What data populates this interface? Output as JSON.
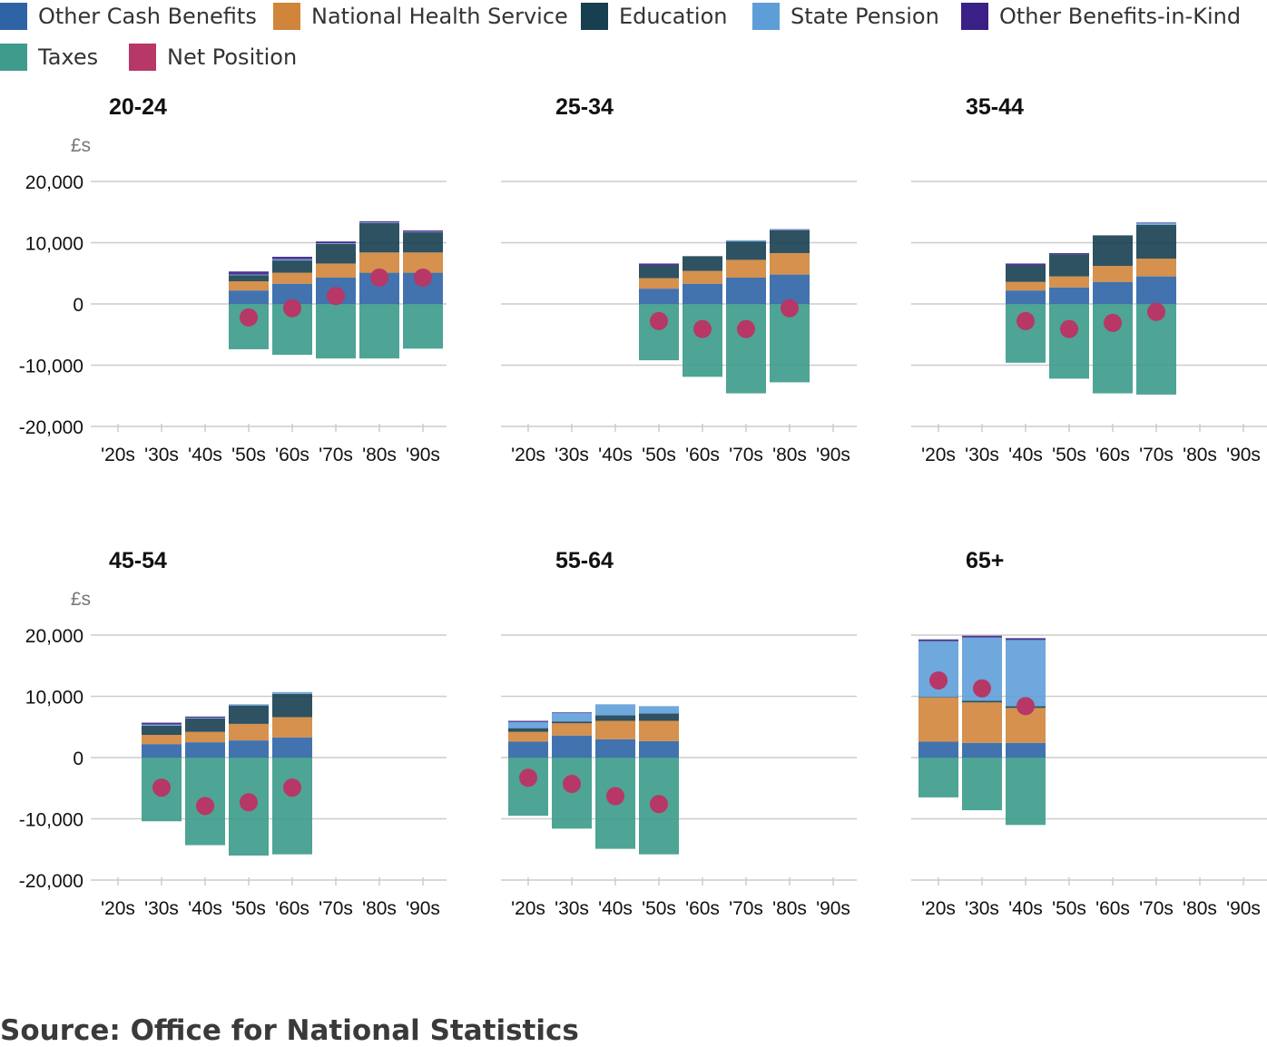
{
  "legend": {
    "items": [
      {
        "label": "Other Cash Benefits",
        "color": "#2e64a6"
      },
      {
        "label": "National Health Service",
        "color": "#d0853a"
      },
      {
        "label": "Education",
        "color": "#173f50"
      },
      {
        "label": "State Pension",
        "color": "#5e9ed8"
      },
      {
        "label": "Other Benefits-in-Kind",
        "color": "#3a1f86"
      },
      {
        "label": "Taxes",
        "color": "#3f9c8c"
      },
      {
        "label": "Net Position",
        "color": "#b73766"
      }
    ]
  },
  "source": "Source: Office for National Statistics",
  "chart_data": [
    {
      "type": "bar",
      "title": "20-24",
      "ylabel": "£s",
      "ylim": [
        -20000,
        20000
      ],
      "yticks": [
        20000,
        10000,
        0,
        -10000,
        -20000
      ],
      "ytick_labels": [
        "20,000",
        "10,000",
        "0",
        "-10,000",
        "-20,000"
      ],
      "categories": [
        "'20s",
        "'30s",
        "'40s",
        "'50s",
        "'60s",
        "'70s",
        "'80s",
        "'90s"
      ],
      "series": [
        {
          "name": "Other Cash Benefits",
          "values": [
            null,
            null,
            null,
            2200,
            3300,
            4300,
            5100,
            5100
          ]
        },
        {
          "name": "National Health Service",
          "values": [
            null,
            null,
            null,
            1500,
            1800,
            2300,
            3300,
            3300
          ]
        },
        {
          "name": "Education",
          "values": [
            null,
            null,
            null,
            1000,
            2000,
            3200,
            4800,
            3300
          ]
        },
        {
          "name": "State Pension",
          "values": [
            null,
            null,
            null,
            100,
            200,
            100,
            100,
            100
          ]
        },
        {
          "name": "Other Benefits-in-Kind",
          "values": [
            null,
            null,
            null,
            500,
            400,
            300,
            200,
            200
          ]
        },
        {
          "name": "Taxes",
          "values": [
            null,
            null,
            null,
            -7400,
            -8300,
            -8900,
            -8900,
            -7300
          ]
        },
        {
          "name": "Net Position",
          "values": [
            null,
            null,
            null,
            -2200,
            -700,
            1300,
            4300,
            4300
          ]
        }
      ]
    },
    {
      "type": "bar",
      "title": "25-34",
      "ylim": [
        -20000,
        20000
      ],
      "categories": [
        "'20s",
        "'30s",
        "'40s",
        "'50s",
        "'60s",
        "'70s",
        "'80s",
        "'90s"
      ],
      "series": [
        {
          "name": "Other Cash Benefits",
          "values": [
            null,
            null,
            null,
            2500,
            3300,
            4300,
            4800,
            null
          ]
        },
        {
          "name": "National Health Service",
          "values": [
            null,
            null,
            null,
            1700,
            2100,
            2900,
            3500,
            null
          ]
        },
        {
          "name": "Education",
          "values": [
            null,
            null,
            null,
            2100,
            2400,
            3000,
            3700,
            null
          ]
        },
        {
          "name": "State Pension",
          "values": [
            null,
            null,
            null,
            0,
            0,
            200,
            100,
            null
          ]
        },
        {
          "name": "Other Benefits-in-Kind",
          "values": [
            null,
            null,
            null,
            300,
            0,
            0,
            100,
            null
          ]
        },
        {
          "name": "Taxes",
          "values": [
            null,
            null,
            null,
            -9200,
            -11900,
            -14600,
            -12800,
            null
          ]
        },
        {
          "name": "Net Position",
          "values": [
            null,
            null,
            null,
            -2800,
            -4100,
            -4100,
            -700,
            null
          ]
        }
      ]
    },
    {
      "type": "bar",
      "title": "35-44",
      "ylim": [
        -20000,
        20000
      ],
      "categories": [
        "'20s",
        "'30s",
        "'40s",
        "'50s",
        "'60s",
        "'70s",
        "'80s",
        "'90s"
      ],
      "series": [
        {
          "name": "Other Cash Benefits",
          "values": [
            null,
            null,
            2200,
            2700,
            3600,
            4500,
            null,
            null
          ]
        },
        {
          "name": "National Health Service",
          "values": [
            null,
            null,
            1400,
            1800,
            2600,
            2900,
            null,
            null
          ]
        },
        {
          "name": "Education",
          "values": [
            null,
            null,
            2700,
            3600,
            5000,
            5500,
            null,
            null
          ]
        },
        {
          "name": "State Pension",
          "values": [
            null,
            null,
            0,
            0,
            0,
            300,
            null,
            null
          ]
        },
        {
          "name": "Other Benefits-in-Kind",
          "values": [
            null,
            null,
            300,
            200,
            0,
            100,
            null,
            null
          ]
        },
        {
          "name": "Taxes",
          "values": [
            null,
            null,
            -9600,
            -12200,
            -14600,
            -14800,
            null,
            null
          ]
        },
        {
          "name": "Net Position",
          "values": [
            null,
            null,
            -2800,
            -4100,
            -3100,
            -1300,
            null,
            null
          ]
        }
      ]
    },
    {
      "type": "bar",
      "title": "45-54",
      "ylabel": "£s",
      "ylim": [
        -20000,
        20000
      ],
      "yticks": [
        20000,
        10000,
        0,
        -10000,
        -20000
      ],
      "ytick_labels": [
        "20,000",
        "10,000",
        "0",
        "-10,000",
        "-20,000"
      ],
      "categories": [
        "'20s",
        "'30s",
        "'40s",
        "'50s",
        "'60s",
        "'70s",
        "'80s",
        "'90s"
      ],
      "series": [
        {
          "name": "Other Cash Benefits",
          "values": [
            null,
            2200,
            2500,
            2800,
            3300,
            null,
            null,
            null
          ]
        },
        {
          "name": "National Health Service",
          "values": [
            null,
            1500,
            1700,
            2700,
            3300,
            null,
            null,
            null
          ]
        },
        {
          "name": "Education",
          "values": [
            null,
            1500,
            2200,
            3000,
            3800,
            null,
            null,
            null
          ]
        },
        {
          "name": "State Pension",
          "values": [
            null,
            200,
            100,
            200,
            300,
            null,
            null,
            null
          ]
        },
        {
          "name": "Other Benefits-in-Kind",
          "values": [
            null,
            300,
            200,
            0,
            0,
            null,
            null,
            null
          ]
        },
        {
          "name": "Taxes",
          "values": [
            null,
            -10400,
            -14300,
            -16000,
            -15800,
            null,
            null,
            null
          ]
        },
        {
          "name": "Net Position",
          "values": [
            null,
            -4900,
            -7900,
            -7300,
            -4900,
            null,
            null,
            null
          ]
        }
      ]
    },
    {
      "type": "bar",
      "title": "55-64",
      "ylim": [
        -20000,
        20000
      ],
      "categories": [
        "'20s",
        "'30s",
        "'40s",
        "'50s",
        "'60s",
        "'70s",
        "'80s",
        "'90s"
      ],
      "series": [
        {
          "name": "Other Cash Benefits",
          "values": [
            2600,
            3600,
            3000,
            2700,
            null,
            null,
            null,
            null
          ]
        },
        {
          "name": "National Health Service",
          "values": [
            1600,
            2000,
            3000,
            3300,
            null,
            null,
            null,
            null
          ]
        },
        {
          "name": "Education",
          "values": [
            600,
            300,
            900,
            1200,
            null,
            null,
            null,
            null
          ]
        },
        {
          "name": "State Pension",
          "values": [
            1000,
            1400,
            1800,
            1200,
            null,
            null,
            null,
            null
          ]
        },
        {
          "name": "Other Benefits-in-Kind",
          "values": [
            200,
            100,
            0,
            0,
            null,
            null,
            null,
            null
          ]
        },
        {
          "name": "Taxes",
          "values": [
            -9500,
            -11600,
            -14900,
            -15800,
            null,
            null,
            null,
            null
          ]
        },
        {
          "name": "Net Position",
          "values": [
            -3300,
            -4300,
            -6300,
            -7600,
            null,
            null,
            null,
            null
          ]
        }
      ]
    },
    {
      "type": "bar",
      "title": "65+",
      "ylim": [
        -20000,
        20000
      ],
      "categories": [
        "'20s",
        "'30s",
        "'40s",
        "'50s",
        "'60s",
        "'70s",
        "'80s",
        "'90s"
      ],
      "series": [
        {
          "name": "Other Cash Benefits",
          "values": [
            2600,
            2400,
            2400,
            null,
            null,
            null,
            null,
            null
          ]
        },
        {
          "name": "National Health Service",
          "values": [
            7200,
            6600,
            5700,
            null,
            null,
            null,
            null,
            null
          ]
        },
        {
          "name": "Education",
          "values": [
            100,
            300,
            300,
            null,
            null,
            null,
            null,
            null
          ]
        },
        {
          "name": "State Pension",
          "values": [
            9100,
            10300,
            10800,
            null,
            null,
            null,
            null,
            null
          ]
        },
        {
          "name": "Other Benefits-in-Kind",
          "values": [
            300,
            300,
            300,
            null,
            null,
            null,
            null,
            null
          ]
        },
        {
          "name": "Taxes",
          "values": [
            -6500,
            -8600,
            -11000,
            null,
            null,
            null,
            null,
            null
          ]
        },
        {
          "name": "Net Position",
          "values": [
            12600,
            11300,
            8400,
            null,
            null,
            null,
            null,
            null
          ]
        }
      ]
    }
  ]
}
